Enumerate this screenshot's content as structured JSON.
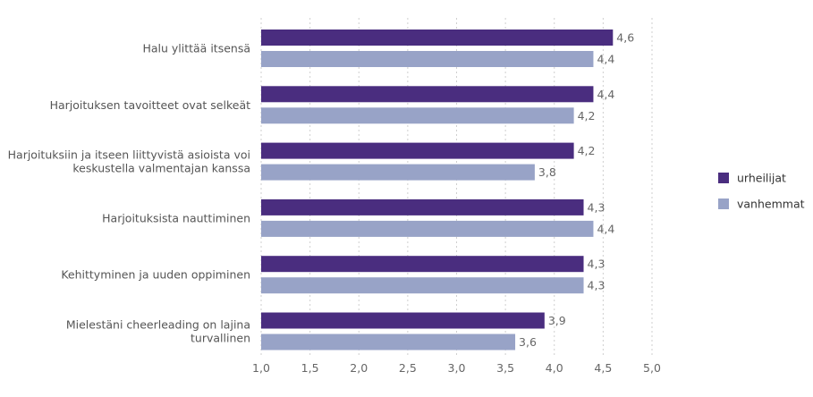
{
  "chart_data": {
    "type": "bar",
    "orientation": "horizontal",
    "categories": [
      [
        "Halu ylittää itsensä"
      ],
      [
        "Harjoituksen tavoitteet ovat selkeät"
      ],
      [
        "Harjoituksiin ja itseen liittyvistä asioista voi",
        "keskustella valmentajan kanssa"
      ],
      [
        "Harjoituksista nauttiminen"
      ],
      [
        "Kehittyminen ja uuden oppiminen"
      ],
      [
        "Mielestäni cheerleading on lajina",
        "turvallinen"
      ]
    ],
    "series": [
      {
        "name": "urheilijat",
        "color": "#4a2d7f",
        "values": [
          4.6,
          4.4,
          4.2,
          4.3,
          4.3,
          3.9
        ],
        "labels": [
          "4,6",
          "4,4",
          "4,2",
          "4,3",
          "4,3",
          "3,9"
        ]
      },
      {
        "name": "vanhemmat",
        "color": "#98a3c7",
        "values": [
          4.4,
          4.2,
          3.8,
          4.4,
          4.3,
          3.6
        ],
        "labels": [
          "4,4",
          "4,2",
          "3,8",
          "4,4",
          "4,3",
          "3,6"
        ]
      }
    ],
    "xlim": [
      1.0,
      5.0
    ],
    "xticks": [
      1.0,
      1.5,
      2.0,
      2.5,
      3.0,
      3.5,
      4.0,
      4.5,
      5.0
    ],
    "xtick_labels": [
      "1,0",
      "1,5",
      "2,0",
      "2,5",
      "3,0",
      "3,5",
      "4,0",
      "4,5",
      "5,0"
    ],
    "grid": true,
    "legend_position": "right"
  }
}
